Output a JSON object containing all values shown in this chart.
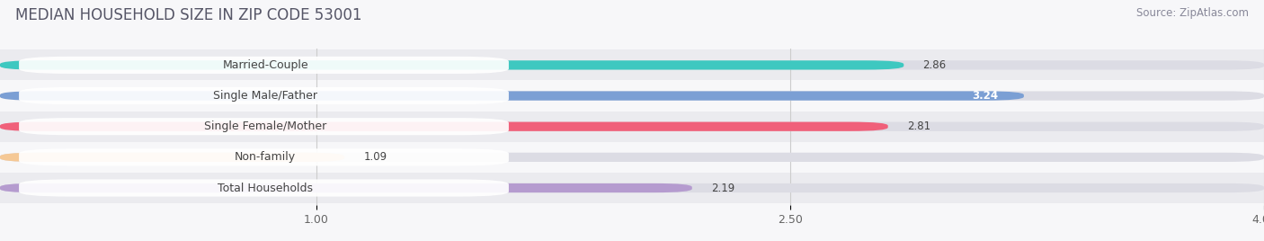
{
  "title": "MEDIAN HOUSEHOLD SIZE IN ZIP CODE 53001",
  "source": "Source: ZipAtlas.com",
  "categories": [
    "Married-Couple",
    "Single Male/Father",
    "Single Female/Mother",
    "Non-family",
    "Total Households"
  ],
  "values": [
    2.86,
    3.24,
    2.81,
    1.09,
    2.19
  ],
  "bar_colors": [
    "#3ec8c0",
    "#7b9fd4",
    "#f0607a",
    "#f5c895",
    "#b59bcf"
  ],
  "bar_bg_color": "#e8e8ec",
  "xlim_data": [
    0.0,
    4.0
  ],
  "x_axis_start": 0.0,
  "xticks": [
    1.0,
    2.5,
    4.0
  ],
  "title_fontsize": 12,
  "source_fontsize": 8.5,
  "label_fontsize": 9,
  "value_fontsize": 8.5,
  "background_color": "#f7f7f9",
  "label_bg_color": "#ffffff",
  "row_bg_colors": [
    "#ebebef",
    "#f7f7f9"
  ]
}
